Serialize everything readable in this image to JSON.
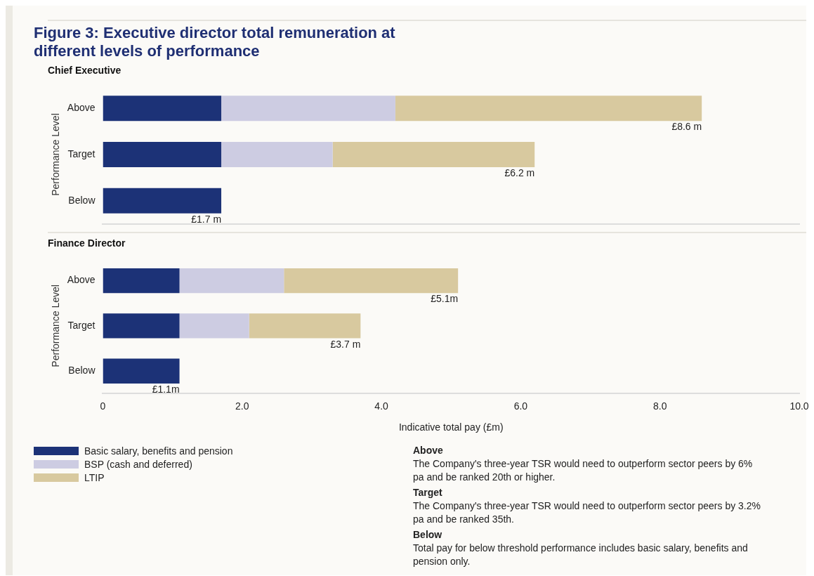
{
  "chart_data": [
    {
      "type": "bar",
      "title": "Figure 3: Executive director total remuneration at different levels of performance",
      "subtitle": "Chief Executive",
      "ylabel": "Performance Level",
      "orientation": "horizontal",
      "stacked": true,
      "categories": [
        "Above",
        "Target",
        "Below"
      ],
      "series": [
        {
          "color": "#1c3277",
          "values": [
            1.7,
            1.7,
            1.7
          ]
        },
        {
          "color": "#cdcce2",
          "values": [
            2.5,
            1.6,
            null
          ]
        },
        {
          "color": "#d8c99f",
          "values": [
            4.4,
            2.9,
            null
          ]
        }
      ],
      "totals": [
        "£8.6 m",
        "£6.2 m",
        "£1.7 m"
      ],
      "xlim": [
        0,
        10
      ],
      "tick_labels": "y",
      "grid": false
    },
    {
      "type": "bar",
      "subtitle": "Finance Director",
      "ylabel": "Performance Level",
      "xlabel": "Indicative total pay (£m)",
      "orientation": "horizontal",
      "stacked": true,
      "categories": [
        "Above",
        "Target",
        "Below"
      ],
      "series": [
        {
          "name": "Basic salary, benefits and pension",
          "color": "#1c3277",
          "values": [
            1.1,
            1.1,
            1.1
          ]
        },
        {
          "name": "BSP (cash and deferred)",
          "color": "#cdcce2",
          "values": [
            1.5,
            1.0,
            null
          ]
        },
        {
          "name": "LTIP",
          "color": "#d8c99f",
          "values": [
            2.5,
            1.6,
            null
          ]
        }
      ],
      "totals": [
        "£5.1m",
        "£3.7 m",
        "£1.1m"
      ],
      "xlim": [
        0,
        10
      ],
      "xticks": [
        0,
        {
          "value": 2,
          "label": "2.0"
        },
        {
          "value": 4,
          "label": "4.0"
        },
        {
          "value": 6,
          "label": "6.0"
        },
        {
          "value": 8,
          "label": "8.0"
        },
        {
          "value": 10,
          "label": "10.0"
        }
      ],
      "grid": false,
      "legend": "bottom left",
      "annotations": [
        "Above",
        "The Company's three-year TSR would need to outperform sector peers by 6% pa and be ranked 20th or higher.",
        "Target",
        "The Company's three-year TSR would need to outperform sector peers by 3.2% pa and be ranked 35th.",
        "Below",
        "Total pay for below threshold performance includes basic salary, benefits and pension only."
      ]
    }
  ]
}
